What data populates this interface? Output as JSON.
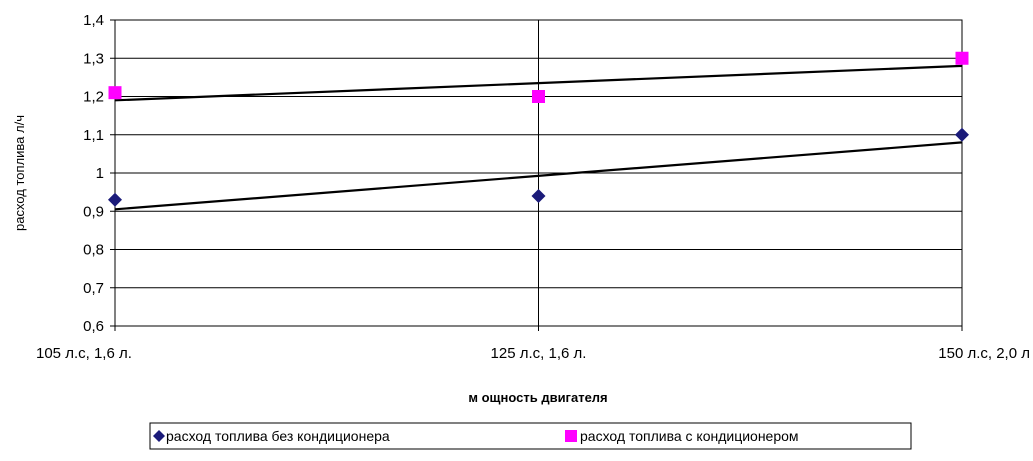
{
  "chart_data": {
    "type": "scatter",
    "categories": [
      "105 л.с, 1,6 л.",
      "125 л.с, 1,6 л.",
      "150 л.с, 2,0 л"
    ],
    "series": [
      {
        "name": "расход топлива без кондиционера",
        "values": [
          0.93,
          0.94,
          1.1
        ],
        "marker": "diamond",
        "color": "#1b1b7a",
        "trendline": [
          0.905,
          1.08
        ]
      },
      {
        "name": "расход топлива с кондиционером",
        "values": [
          1.21,
          1.2,
          1.3
        ],
        "marker": "square",
        "color": "#ff00ff",
        "trendline": [
          1.19,
          1.28
        ]
      }
    ],
    "ylim": [
      0.6,
      1.4
    ],
    "yticks": [
      "0,6",
      "0,7",
      "0,8",
      "0,9",
      "1",
      "1,1",
      "1,2",
      "1,3",
      "1,4"
    ],
    "ylabel": "расход топлива л/ч",
    "xlabel": "м ощность двигателя",
    "grid": true,
    "legend": "bottom"
  }
}
